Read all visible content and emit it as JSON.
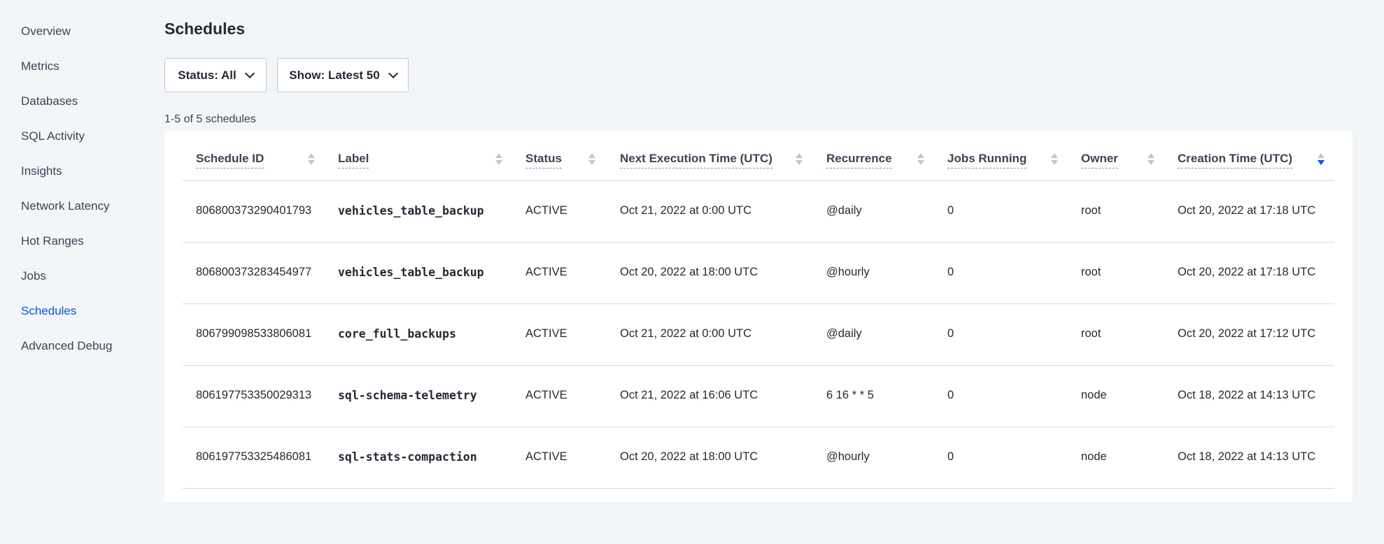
{
  "sidebar": {
    "items": [
      "Overview",
      "Metrics",
      "Databases",
      "SQL Activity",
      "Insights",
      "Network Latency",
      "Hot Ranges",
      "Jobs",
      "Schedules",
      "Advanced Debug"
    ],
    "active": "Schedules"
  },
  "page_title": "Schedules",
  "filters": {
    "status": "Status: All",
    "show": "Show: Latest 50"
  },
  "count_text": "1-5 of 5 schedules",
  "table": {
    "columns": [
      "Schedule ID",
      "Label",
      "Status",
      "Next Execution Time (UTC)",
      "Recurrence",
      "Jobs Running",
      "Owner",
      "Creation Time (UTC)"
    ],
    "sorted_column": "Creation Time (UTC)",
    "sort_direction": "descending",
    "rows": [
      [
        "806800373290401793",
        "vehicles_table_backup",
        "ACTIVE",
        "Oct 21, 2022 at 0:00 UTC",
        "@daily",
        "0",
        "root",
        "Oct 20, 2022 at 17:18 UTC"
      ],
      [
        "806800373283454977",
        "vehicles_table_backup",
        "ACTIVE",
        "Oct 20, 2022 at 18:00 UTC",
        "@hourly",
        "0",
        "root",
        "Oct 20, 2022 at 17:18 UTC"
      ],
      [
        "806799098533806081",
        "core_full_backups",
        "ACTIVE",
        "Oct 21, 2022 at 0:00 UTC",
        "@daily",
        "0",
        "root",
        "Oct 20, 2022 at 17:12 UTC"
      ],
      [
        "806197753350029313",
        "sql-schema-telemetry",
        "ACTIVE",
        "Oct 21, 2022 at 16:06 UTC",
        "6 16 * * 5",
        "0",
        "node",
        "Oct 18, 2022 at 14:13 UTC"
      ],
      [
        "806197753325486081",
        "sql-stats-compaction",
        "ACTIVE",
        "Oct 20, 2022 at 18:00 UTC",
        "@hourly",
        "0",
        "node",
        "Oct 18, 2022 at 14:13 UTC"
      ]
    ]
  },
  "colors": {
    "accent": "#0055ff",
    "background": "#f3f6f9"
  }
}
